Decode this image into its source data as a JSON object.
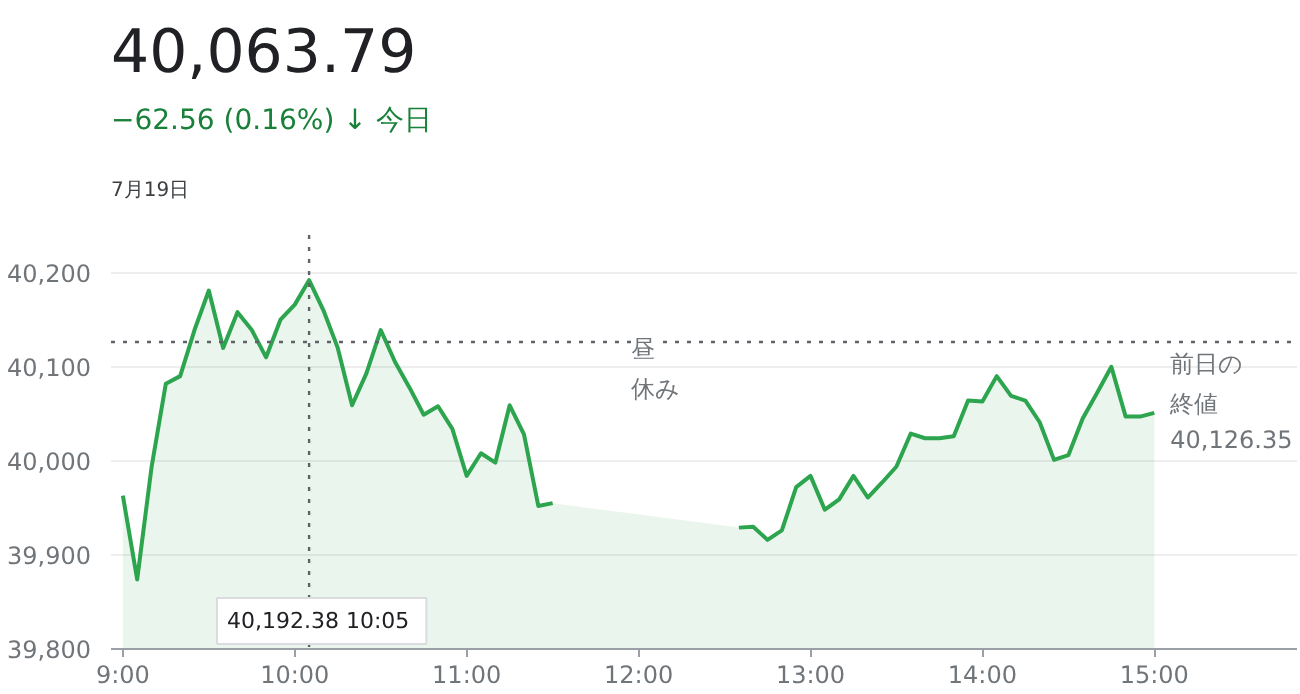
{
  "chart_data": {
    "type": "area",
    "title": "40,063.79",
    "subtitle": "−62.56 (0.16%) ↓ 今日",
    "annotations": [
      "7月19日",
      "昼休み",
      "40,192.38  10:05",
      "40,126.35"
    ],
    "xlim": [
      8.931,
      15.83
    ],
    "xticks": [
      {
        "value": 9,
        "label": "9:00"
      },
      {
        "value": 10,
        "label": "10:00"
      },
      {
        "value": 11,
        "label": "11:00"
      },
      {
        "value": 12,
        "label": "12:00"
      },
      {
        "value": 13,
        "label": "13:00"
      },
      {
        "value": 14,
        "label": "14:00"
      },
      {
        "value": 15,
        "label": "15:00"
      }
    ],
    "ylim": [
      39800,
      40240
    ],
    "yticks": [
      {
        "value": 39800,
        "label": "39,800"
      },
      {
        "value": 39900,
        "label": "39,900"
      },
      {
        "value": 40000,
        "label": "40,000"
      },
      {
        "value": 40100,
        "label": "40,100"
      },
      {
        "value": 40200,
        "label": "40,200"
      }
    ],
    "grid": "y",
    "ref_lines": [
      {
        "axis": "y",
        "value": 40126.35,
        "label": "前日の終値",
        "line_style": "dotted",
        "color": "#5f6368"
      },
      {
        "axis": "x",
        "value": 10.0833,
        "line_style": "dotted",
        "color": "#5f6368"
      }
    ],
    "x": [
      9.0,
      9.0833,
      9.1667,
      9.25,
      9.3333,
      9.4167,
      9.5,
      9.5833,
      9.6667,
      9.75,
      9.8333,
      9.9167,
      10.0,
      10.0833,
      10.1667,
      10.25,
      10.3333,
      10.4167,
      10.5,
      10.5833,
      10.6667,
      10.75,
      10.8333,
      10.9167,
      11.0,
      11.0833,
      11.1667,
      11.25,
      11.3333,
      11.4167,
      11.5,
      12.0,
      12.5833,
      12.6667,
      12.75,
      12.8333,
      12.9167,
      13.0,
      13.0833,
      13.1667,
      13.25,
      13.3333,
      13.4167,
      13.5,
      13.5833,
      13.6667,
      13.75,
      13.8333,
      13.9167,
      14.0,
      14.0833,
      14.1667,
      14.25,
      14.3333,
      14.4167,
      14.5,
      14.5833,
      14.6667,
      14.75,
      14.8333,
      14.9167,
      15.0
    ],
    "series": [
      {
        "color": "#2da44e",
        "values": [
          39963,
          39874,
          39993,
          40082,
          40090,
          40139,
          40181,
          40120,
          40158,
          40139,
          40110,
          40150,
          40166,
          40192,
          40160,
          40120,
          40059,
          40093,
          40139,
          40105,
          40078,
          40049,
          40058,
          40034,
          39984,
          40008,
          39998,
          40059,
          40028,
          39952,
          39955,
          null,
          39929,
          39930,
          39916,
          39926,
          39972,
          39984,
          39948,
          39959,
          39984,
          39961,
          39977,
          39994,
          40029,
          40024,
          40024,
          40026,
          40064,
          40063,
          40090,
          40069,
          40064,
          40041,
          40001,
          40006,
          40045,
          40072,
          40100,
          40047,
          40047,
          40051
        ]
      }
    ]
  }
}
